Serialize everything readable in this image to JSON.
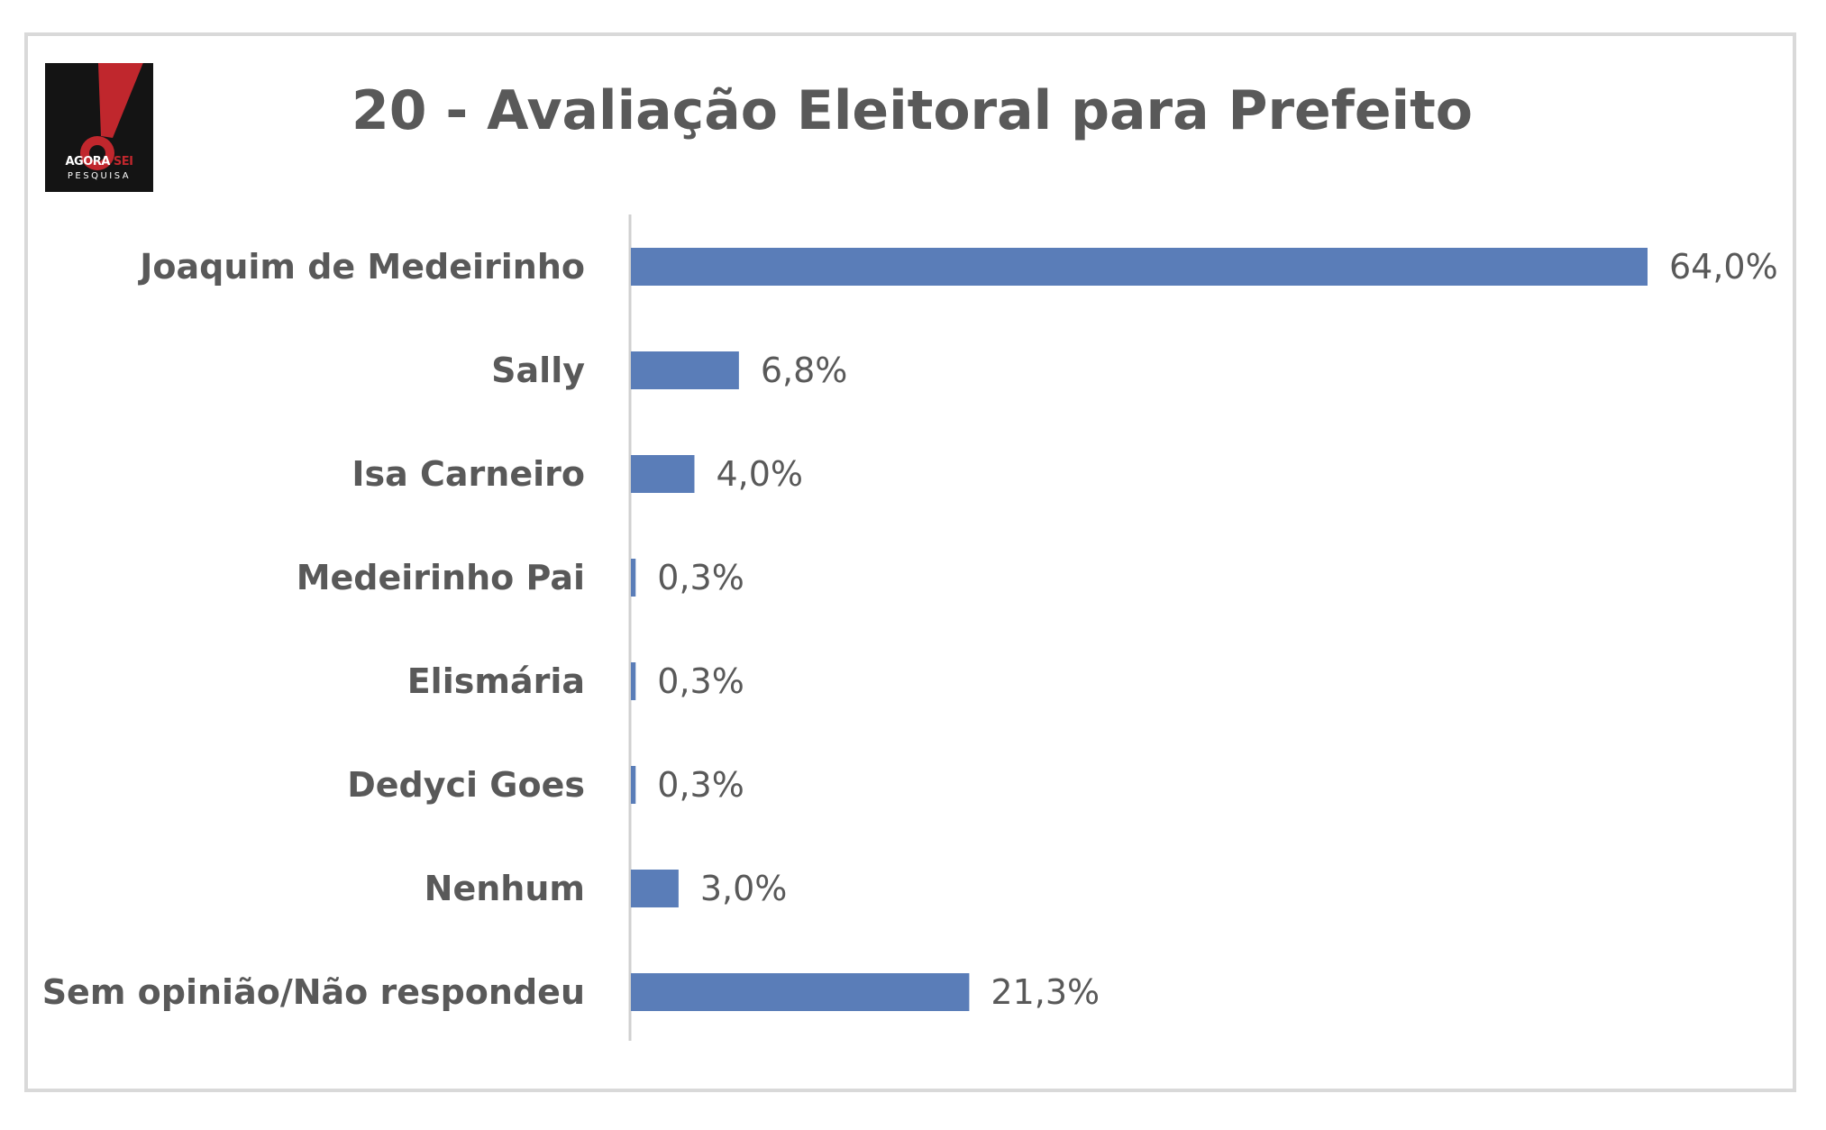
{
  "logo": {
    "brand": "AGORA SEI",
    "brand_accent": "SEI",
    "subtitle": "PESQUISA",
    "colors": {
      "background": "#141414",
      "mark": "#c0272d"
    },
    "icon": "exclamation-mark-icon"
  },
  "chart_data": {
    "type": "bar",
    "orientation": "horizontal",
    "title": "20 - Avaliação Eleitoral para Prefeito",
    "categories": [
      "Joaquim de Medeirinho",
      "Sally",
      "Isa Carneiro",
      "Medeirinho Pai",
      "Elismária",
      "Dedyci Goes",
      "Nenhum",
      "Sem opinião/Não respondeu"
    ],
    "values": [
      64.0,
      6.8,
      4.0,
      0.3,
      0.3,
      0.3,
      3.0,
      21.3
    ],
    "value_labels": [
      "64,0%",
      "6,8%",
      "4,0%",
      "0,3%",
      "0,3%",
      "0,3%",
      "3,0%",
      "21,3%"
    ],
    "unit": "%",
    "xlim": [
      0,
      64
    ],
    "grid": false,
    "legend": "none",
    "colors": {
      "bar": "#5a7db8",
      "axis": "#d0d0d0",
      "text": "#595959"
    }
  }
}
